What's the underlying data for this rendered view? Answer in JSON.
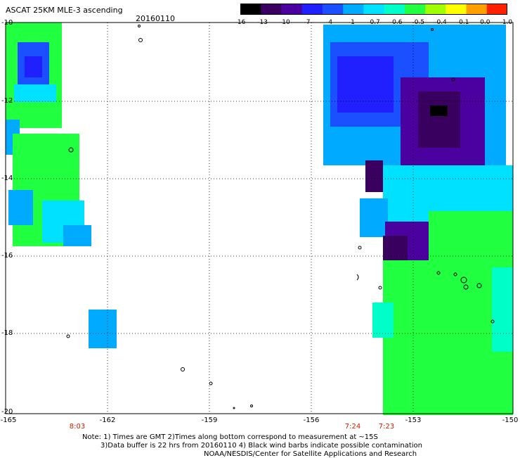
{
  "header": {
    "title": "ASCAT 25KM MLE-3 ascending",
    "date": "20160110"
  },
  "colorbar": {
    "labels": [
      "-16",
      "-13",
      "-10",
      "-7",
      "-4",
      "-1",
      "-0.7",
      "-0.6",
      "-0.5",
      "-0.4",
      "-0.1",
      "0.0",
      "1.0"
    ],
    "colors": [
      "#000000",
      "#3a0060",
      "#4b00a0",
      "#2020ff",
      "#1a50ff",
      "#00aaff",
      "#00e0ff",
      "#00ffc8",
      "#20ff40",
      "#a0ff00",
      "#ffff00",
      "#ffa000",
      "#ff2000"
    ]
  },
  "axes": {
    "y_labels": [
      "-10",
      "-12",
      "-14",
      "-16",
      "-18",
      "-20"
    ],
    "x_labels": [
      "-165",
      "-162",
      "-159",
      "-156",
      "-153",
      "-150"
    ]
  },
  "times": [
    "8:03",
    "7:24",
    "7:23"
  ],
  "notes": {
    "line1": "Note: 1) Times are GMT 2)Times along bottom correspond to measurement at ~15S",
    "line2": "3)Data buffer is 22 hrs from 20160110 4) Black wind barbs indicate possible contamination",
    "line3": "NOAA/NESDIS/Center for Satellite Applications and Research"
  }
}
